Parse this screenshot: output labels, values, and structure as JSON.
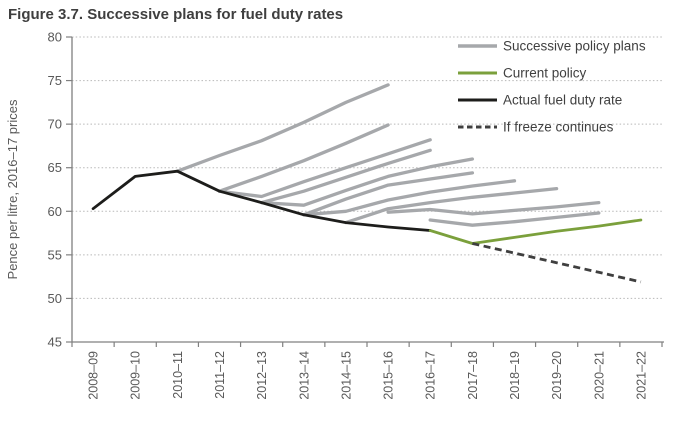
{
  "title": "Figure 3.7. Successive plans for fuel duty rates",
  "colors": {
    "plan": "#a6a8ab",
    "actual": "#1d1d1b",
    "current": "#7ba03c",
    "freeze": "#3f3f3f",
    "grid": "#b8b8b8",
    "axis": "#808080",
    "tick_text": "#595959",
    "legend_text": "#404040",
    "title_text": "#3f3f3f"
  },
  "chart_data": {
    "type": "line",
    "title": "Figure 3.7. Successive plans for fuel duty rates",
    "xlabel": "",
    "ylabel": "Pence per litre, 2016–17 prices",
    "ylim": [
      45,
      80
    ],
    "ytick_step": 5,
    "grid": "horizontal-dotted",
    "legend_position": "top-right-inside",
    "categories": [
      "2008–09",
      "2009–10",
      "2010–11",
      "2011–12",
      "2012–13",
      "2013–14",
      "2014–15",
      "2015–16",
      "2016–17",
      "2017–18",
      "2018–19",
      "2019–20",
      "2020–21",
      "2021–22"
    ],
    "series": {
      "plans": {
        "label": "Successive policy plans",
        "lines": [
          {
            "start": 2,
            "values": [
              64.6,
              66.4,
              68.1,
              70.2,
              72.5,
              74.5
            ]
          },
          {
            "start": 3,
            "values": [
              62.3,
              64.0,
              65.8,
              67.8,
              69.9
            ]
          },
          {
            "start": 3,
            "values": [
              62.3,
              61.7,
              63.4,
              65.0,
              66.6,
              68.2
            ]
          },
          {
            "start": 4,
            "values": [
              61.0,
              62.3,
              63.9,
              65.5,
              67.0
            ]
          },
          {
            "start": 4,
            "values": [
              61.0,
              60.7,
              62.4,
              64.0,
              65.1,
              66.0
            ]
          },
          {
            "start": 5,
            "values": [
              59.6,
              61.4,
              63.0,
              63.7,
              64.4
            ]
          },
          {
            "start": 5,
            "values": [
              59.6,
              60.0,
              61.3,
              62.2,
              62.9,
              63.5
            ]
          },
          {
            "start": 6,
            "values": [
              58.7,
              60.3,
              61.0,
              61.6,
              62.1,
              62.6
            ]
          },
          {
            "start": 7,
            "values": [
              59.9,
              60.2,
              59.7,
              60.1,
              60.5,
              61.0
            ]
          },
          {
            "start": 8,
            "values": [
              59.0,
              58.4,
              58.8,
              59.3,
              59.8
            ]
          }
        ]
      },
      "actual": {
        "label": "Actual fuel duty rate",
        "start": 0,
        "values": [
          60.3,
          64.0,
          64.6,
          62.3,
          61.0,
          59.6,
          58.7,
          58.2,
          57.8
        ]
      },
      "current": {
        "label": "Current policy",
        "start": 8,
        "values": [
          57.8,
          56.3,
          57.0,
          57.7,
          58.3,
          59.0
        ]
      },
      "freeze": {
        "label": "If freeze continues",
        "start": 9,
        "values": [
          56.3,
          55.2,
          54.1,
          53.0,
          51.9
        ],
        "style": "dashed"
      }
    },
    "legend": [
      {
        "label": "Successive policy plans",
        "color": "plan",
        "style": "solid"
      },
      {
        "label": "Current policy",
        "color": "current",
        "style": "solid"
      },
      {
        "label": "Actual fuel duty rate",
        "color": "actual",
        "style": "solid"
      },
      {
        "label": "If freeze continues",
        "color": "freeze",
        "style": "dashed"
      }
    ]
  }
}
